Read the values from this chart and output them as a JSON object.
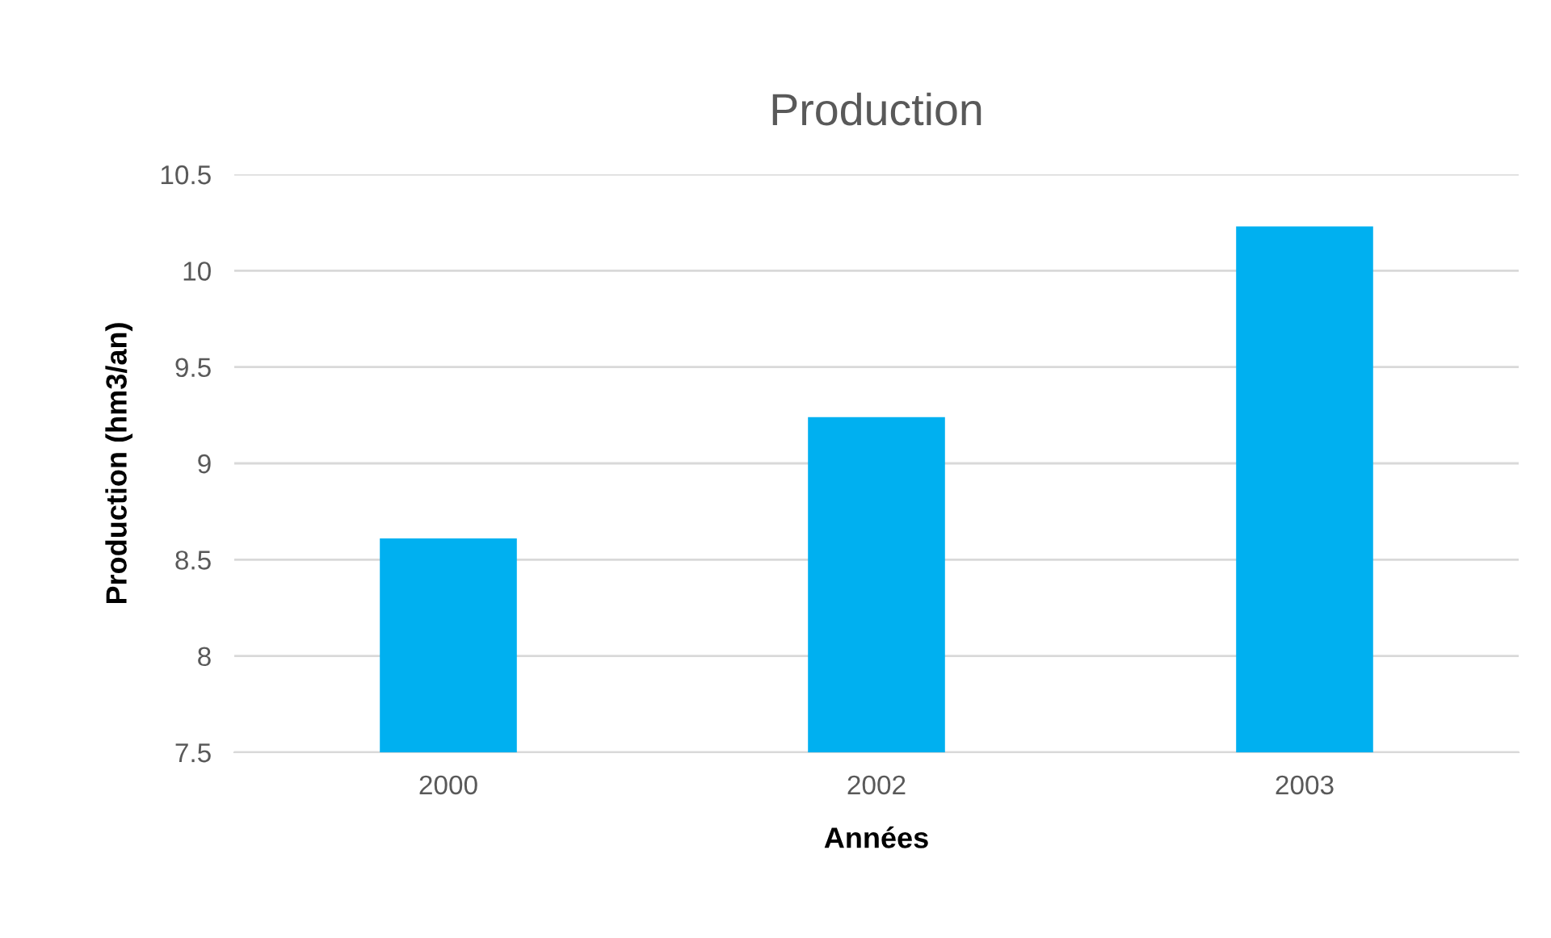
{
  "chart_data": {
    "type": "bar",
    "title": "Production",
    "xlabel": "Années",
    "ylabel": "Production (hm3/an)",
    "categories": [
      "2000",
      "2002",
      "2003"
    ],
    "values": [
      8.61,
      9.24,
      10.23
    ],
    "color": "#00b0f0",
    "ylim": [
      7.5,
      10.5
    ],
    "yticks": [
      7.5,
      8,
      8.5,
      9,
      9.5,
      10,
      10.5
    ],
    "grid": "y"
  }
}
